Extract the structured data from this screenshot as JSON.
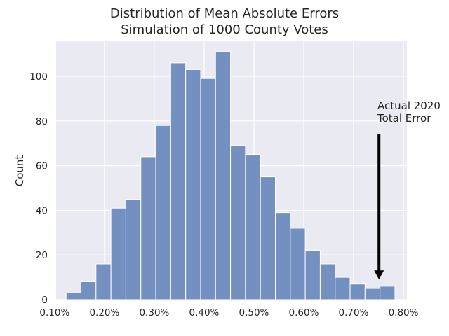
{
  "chart_data": {
    "type": "bar",
    "title": "Distribution of Mean Absolute Errors",
    "subtitle": "Simulation of 1000 County Votes",
    "xlabel": "",
    "ylabel": "Count",
    "xlim": [
      0.00103,
      0.00807
    ],
    "ylim": [
      0,
      116
    ],
    "x_ticks": [
      0.001,
      0.002,
      0.003,
      0.004,
      0.005,
      0.006,
      0.007,
      0.008
    ],
    "x_tick_labels": [
      "0.10%",
      "0.20%",
      "0.30%",
      "0.40%",
      "0.50%",
      "0.60%",
      "0.70%",
      "0.80%"
    ],
    "y_ticks": [
      0,
      20,
      40,
      60,
      80,
      100
    ],
    "y_tick_labels": [
      "0",
      "20",
      "40",
      "60",
      "80",
      "100"
    ],
    "grid": true,
    "bins": [
      [
        0.00123,
        0.00153
      ],
      [
        0.00153,
        0.00183
      ],
      [
        0.00183,
        0.00213
      ],
      [
        0.00213,
        0.00243
      ],
      [
        0.00243,
        0.00273
      ],
      [
        0.00273,
        0.00303
      ],
      [
        0.00303,
        0.00333
      ],
      [
        0.00333,
        0.00363
      ],
      [
        0.00363,
        0.00393
      ],
      [
        0.00393,
        0.00423
      ],
      [
        0.00423,
        0.00453
      ],
      [
        0.00453,
        0.00483
      ],
      [
        0.00483,
        0.00513
      ],
      [
        0.00513,
        0.00543
      ],
      [
        0.00543,
        0.00573
      ],
      [
        0.00573,
        0.00603
      ],
      [
        0.00603,
        0.00633
      ],
      [
        0.00633,
        0.00663
      ],
      [
        0.00663,
        0.00693
      ],
      [
        0.00693,
        0.00723
      ],
      [
        0.00723,
        0.00753
      ],
      [
        0.00753,
        0.00783
      ]
    ],
    "values": [
      3,
      8,
      16,
      41,
      45,
      64,
      78,
      106,
      103,
      99,
      111,
      69,
      65,
      55,
      39,
      32,
      22,
      16,
      10,
      7,
      5,
      6
    ],
    "annotation": {
      "text_lines": [
        "Actual 2020",
        "Total Error"
      ],
      "x": 0.00751,
      "arrow_from_y": 74,
      "arrow_to_y": 9
    },
    "colors": {
      "bar": "#7490c0",
      "plot_bg": "#eaeaf2",
      "grid": "#ffffff",
      "arrow": "#000000"
    }
  }
}
